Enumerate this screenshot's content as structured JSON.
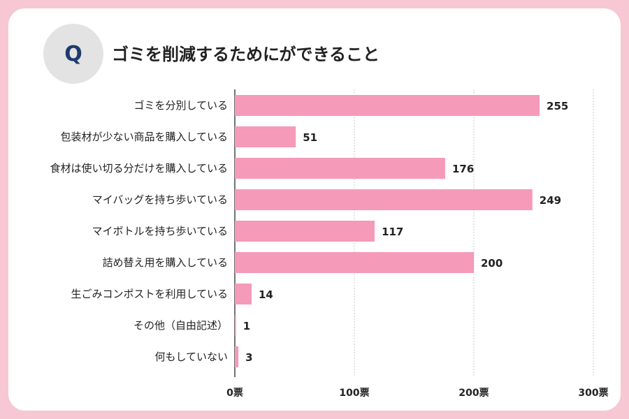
{
  "title": "ゴミを削減するためにができること",
  "badge": "Q",
  "colors": {
    "bar": "#f59ab8",
    "frame": "#f7c7d3",
    "badge_bg": "#e3e3e3",
    "badge_text": "#1f3a6b"
  },
  "chart_data": {
    "type": "bar",
    "orientation": "horizontal",
    "title": "ゴミを削減するためにができること",
    "categories": [
      "ゴミを分別している",
      "包装材が少ない商品を購入している",
      "食材は使い切る分だけを購入している",
      "マイバッグを持ち歩いている",
      "マイボトルを持ち歩いている",
      "詰め替え用を購入している",
      "生ごみコンポストを利用している",
      "その他（自由記述）",
      "何もしていない"
    ],
    "values": [
      255,
      51,
      176,
      249,
      117,
      200,
      14,
      1,
      3
    ],
    "xlim": [
      0,
      300
    ],
    "xticks": [
      0,
      100,
      200,
      300
    ],
    "xtick_labels": [
      "0票",
      "100票",
      "200票",
      "300票"
    ],
    "grid": true
  }
}
